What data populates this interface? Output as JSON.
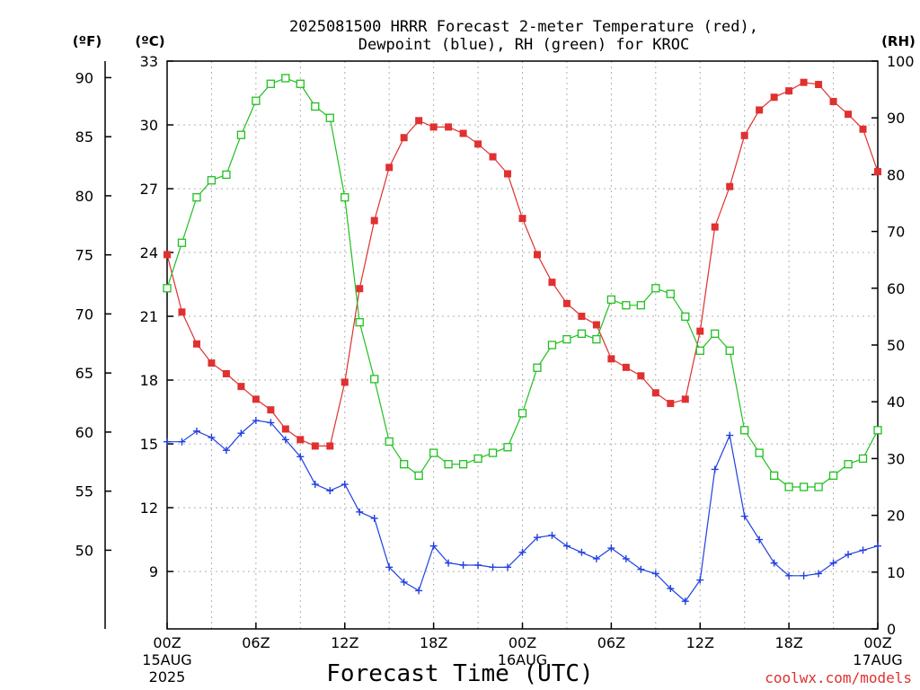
{
  "page": {
    "title_line1": "2025081500 HRRR Forecast 2-meter Temperature (red),",
    "title_line2": "Dewpoint (blue), RH (green) for KROC",
    "credit": "coolwx.com/models"
  },
  "chart_data": {
    "type": "line",
    "title": "2025081500 HRRR Forecast 2-meter Temperature (red), Dewpoint (blue), RH (green) for KROC",
    "xlabel": "Forecast Time (UTC)",
    "x_hours": [
      0,
      1,
      2,
      3,
      4,
      5,
      6,
      7,
      8,
      9,
      10,
      11,
      12,
      13,
      14,
      15,
      16,
      17,
      18,
      19,
      20,
      21,
      22,
      23,
      24,
      25,
      26,
      27,
      28,
      29,
      30,
      31,
      32,
      33,
      34,
      35,
      36,
      37,
      38,
      39,
      40,
      41,
      42,
      43,
      44,
      45,
      46,
      47,
      48
    ],
    "xlim": [
      0,
      48
    ],
    "x_ticks": [
      {
        "hour": 0,
        "label": "00Z",
        "sub1": "15AUG",
        "sub2": "2025"
      },
      {
        "hour": 6,
        "label": "06Z",
        "sub1": "",
        "sub2": ""
      },
      {
        "hour": 12,
        "label": "12Z",
        "sub1": "",
        "sub2": ""
      },
      {
        "hour": 18,
        "label": "18Z",
        "sub1": "",
        "sub2": ""
      },
      {
        "hour": 24,
        "label": "00Z",
        "sub1": "16AUG",
        "sub2": ""
      },
      {
        "hour": 30,
        "label": "06Z",
        "sub1": "",
        "sub2": ""
      },
      {
        "hour": 36,
        "label": "12Z",
        "sub1": "",
        "sub2": ""
      },
      {
        "hour": 42,
        "label": "18Z",
        "sub1": "",
        "sub2": ""
      },
      {
        "hour": 48,
        "label": "00Z",
        "sub1": "17AUG",
        "sub2": ""
      }
    ],
    "y_celsius": {
      "unit_label": "(ºC)",
      "ylim": [
        6.3,
        33
      ],
      "ticks": [
        9,
        12,
        15,
        18,
        21,
        24,
        27,
        30,
        33
      ]
    },
    "y_fahrenheit": {
      "unit_label": "(ºF)",
      "ticks": [
        50,
        55,
        60,
        65,
        70,
        75,
        80,
        85,
        90
      ]
    },
    "y_rh": {
      "unit_label": "(RH)",
      "ylim": [
        0,
        100
      ],
      "ticks": [
        0,
        10,
        20,
        30,
        40,
        50,
        60,
        70,
        80,
        90,
        100
      ]
    },
    "grid": true,
    "series": [
      {
        "key": "temperature",
        "axis": "celsius",
        "color": "#e03030",
        "marker": "filled-square",
        "values": [
          23.9,
          21.2,
          19.7,
          18.8,
          18.3,
          17.7,
          17.1,
          16.6,
          15.7,
          15.2,
          14.9,
          14.9,
          17.9,
          22.3,
          25.5,
          28.0,
          29.4,
          30.2,
          29.9,
          29.9,
          29.6,
          29.1,
          28.5,
          27.7,
          25.6,
          23.9,
          22.6,
          21.6,
          21.0,
          20.6,
          19.0,
          18.6,
          18.2,
          17.4,
          16.9,
          17.1,
          20.3,
          25.2,
          27.1,
          29.5,
          30.7,
          31.3,
          31.6,
          32.0,
          31.9,
          31.1,
          30.5,
          29.8,
          27.8
        ]
      },
      {
        "key": "dewpoint",
        "axis": "celsius",
        "color": "#2040e0",
        "marker": "plus",
        "values": [
          15.1,
          15.1,
          15.6,
          15.3,
          14.7,
          15.5,
          16.1,
          16.0,
          15.2,
          14.4,
          13.1,
          12.8,
          13.1,
          11.8,
          11.5,
          9.2,
          8.5,
          8.1,
          10.2,
          9.4,
          9.3,
          9.3,
          9.2,
          9.2,
          9.9,
          10.6,
          10.7,
          10.2,
          9.9,
          9.6,
          10.1,
          9.6,
          9.1,
          8.9,
          8.2,
          7.6,
          8.6,
          13.8,
          15.4,
          11.6,
          10.5,
          9.4,
          8.8,
          8.8,
          8.9,
          9.4,
          9.8,
          10.0,
          10.2
        ]
      },
      {
        "key": "rh",
        "axis": "rh",
        "color": "#20c020",
        "marker": "open-square",
        "values": [
          60,
          68,
          76,
          79,
          80,
          87,
          93,
          96,
          97,
          96,
          92,
          90,
          76,
          54,
          44,
          33,
          29,
          27,
          31,
          29,
          29,
          30,
          31,
          32,
          38,
          46,
          50,
          51,
          52,
          51,
          58,
          57,
          57,
          60,
          59,
          55,
          49,
          52,
          49,
          35,
          31,
          27,
          25,
          25,
          25,
          27,
          29,
          30,
          35
        ]
      }
    ]
  }
}
